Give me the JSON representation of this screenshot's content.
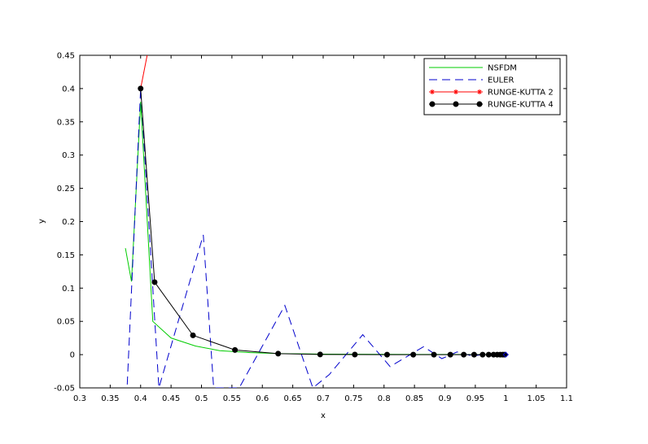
{
  "chart_data": {
    "type": "line",
    "title": "",
    "xlabel": "x",
    "ylabel": "y",
    "xlim": [
      0.3,
      1.1
    ],
    "ylim": [
      -0.05,
      0.45
    ],
    "xticks": [
      "0.3",
      "0.35",
      "0.4",
      "0.45",
      "0.5",
      "0.55",
      "0.6",
      "0.65",
      "0.7",
      "0.75",
      "0.8",
      "0.85",
      "0.9",
      "0.95",
      "1",
      "1.05",
      "1.1"
    ],
    "yticks": [
      "-0.05",
      "0",
      "0.05",
      "0.1",
      "0.15",
      "0.2",
      "0.25",
      "0.3",
      "0.35",
      "0.4",
      "0.45"
    ],
    "grid": false,
    "legend_position": "top-right",
    "series": [
      {
        "name": "NSFDM",
        "color": "#00cc00",
        "style": "solid",
        "marker": "none",
        "x": [
          0.375,
          0.385,
          0.4,
          0.42,
          0.45,
          0.49,
          0.53,
          0.58,
          0.63,
          0.7,
          0.8,
          0.9,
          1.0
        ],
        "y": [
          0.16,
          0.11,
          0.38,
          0.05,
          0.025,
          0.013,
          0.006,
          0.003,
          0.0015,
          0.0008,
          0.0004,
          0.0002,
          0.0
        ]
      },
      {
        "name": "EULER",
        "color": "#0000cc",
        "style": "dashed",
        "marker": "none",
        "x": [
          0.378,
          0.4,
          0.43,
          0.503,
          0.52,
          0.562,
          0.637,
          0.683,
          0.71,
          0.765,
          0.81,
          0.865,
          0.895,
          0.92,
          0.945,
          0.97,
          0.985,
          1.0
        ],
        "y": [
          -0.045,
          0.4,
          -0.05,
          0.18,
          -0.05,
          -0.05,
          0.074,
          -0.05,
          -0.03,
          0.03,
          -0.018,
          0.012,
          -0.006,
          0.004,
          -0.002,
          0.001,
          0.0005,
          0.0
        ]
      },
      {
        "name": "RUNGE-KUTTA 2",
        "color": "#ff0000",
        "style": "solid",
        "marker": "star",
        "x": [
          0.4,
          0.415
        ],
        "y": [
          0.4,
          0.47
        ]
      },
      {
        "name": "RUNGE-KUTTA 4",
        "color": "#000000",
        "style": "solid",
        "marker": "circle",
        "x": [
          0.4,
          0.423,
          0.486,
          0.555,
          0.626,
          0.695,
          0.752,
          0.805,
          0.848,
          0.882,
          0.909,
          0.931,
          0.948,
          0.962,
          0.972,
          0.98,
          0.986,
          0.991,
          0.995,
          0.998
        ],
        "y": [
          0.4,
          0.109,
          0.029,
          0.007,
          0.0015,
          0.0003,
          0.0001,
          0.0,
          0.0,
          0.0,
          0.0,
          0.0,
          0.0,
          0.0,
          0.0,
          0.0,
          0.0,
          0.0,
          0.0,
          0.0
        ]
      }
    ]
  }
}
